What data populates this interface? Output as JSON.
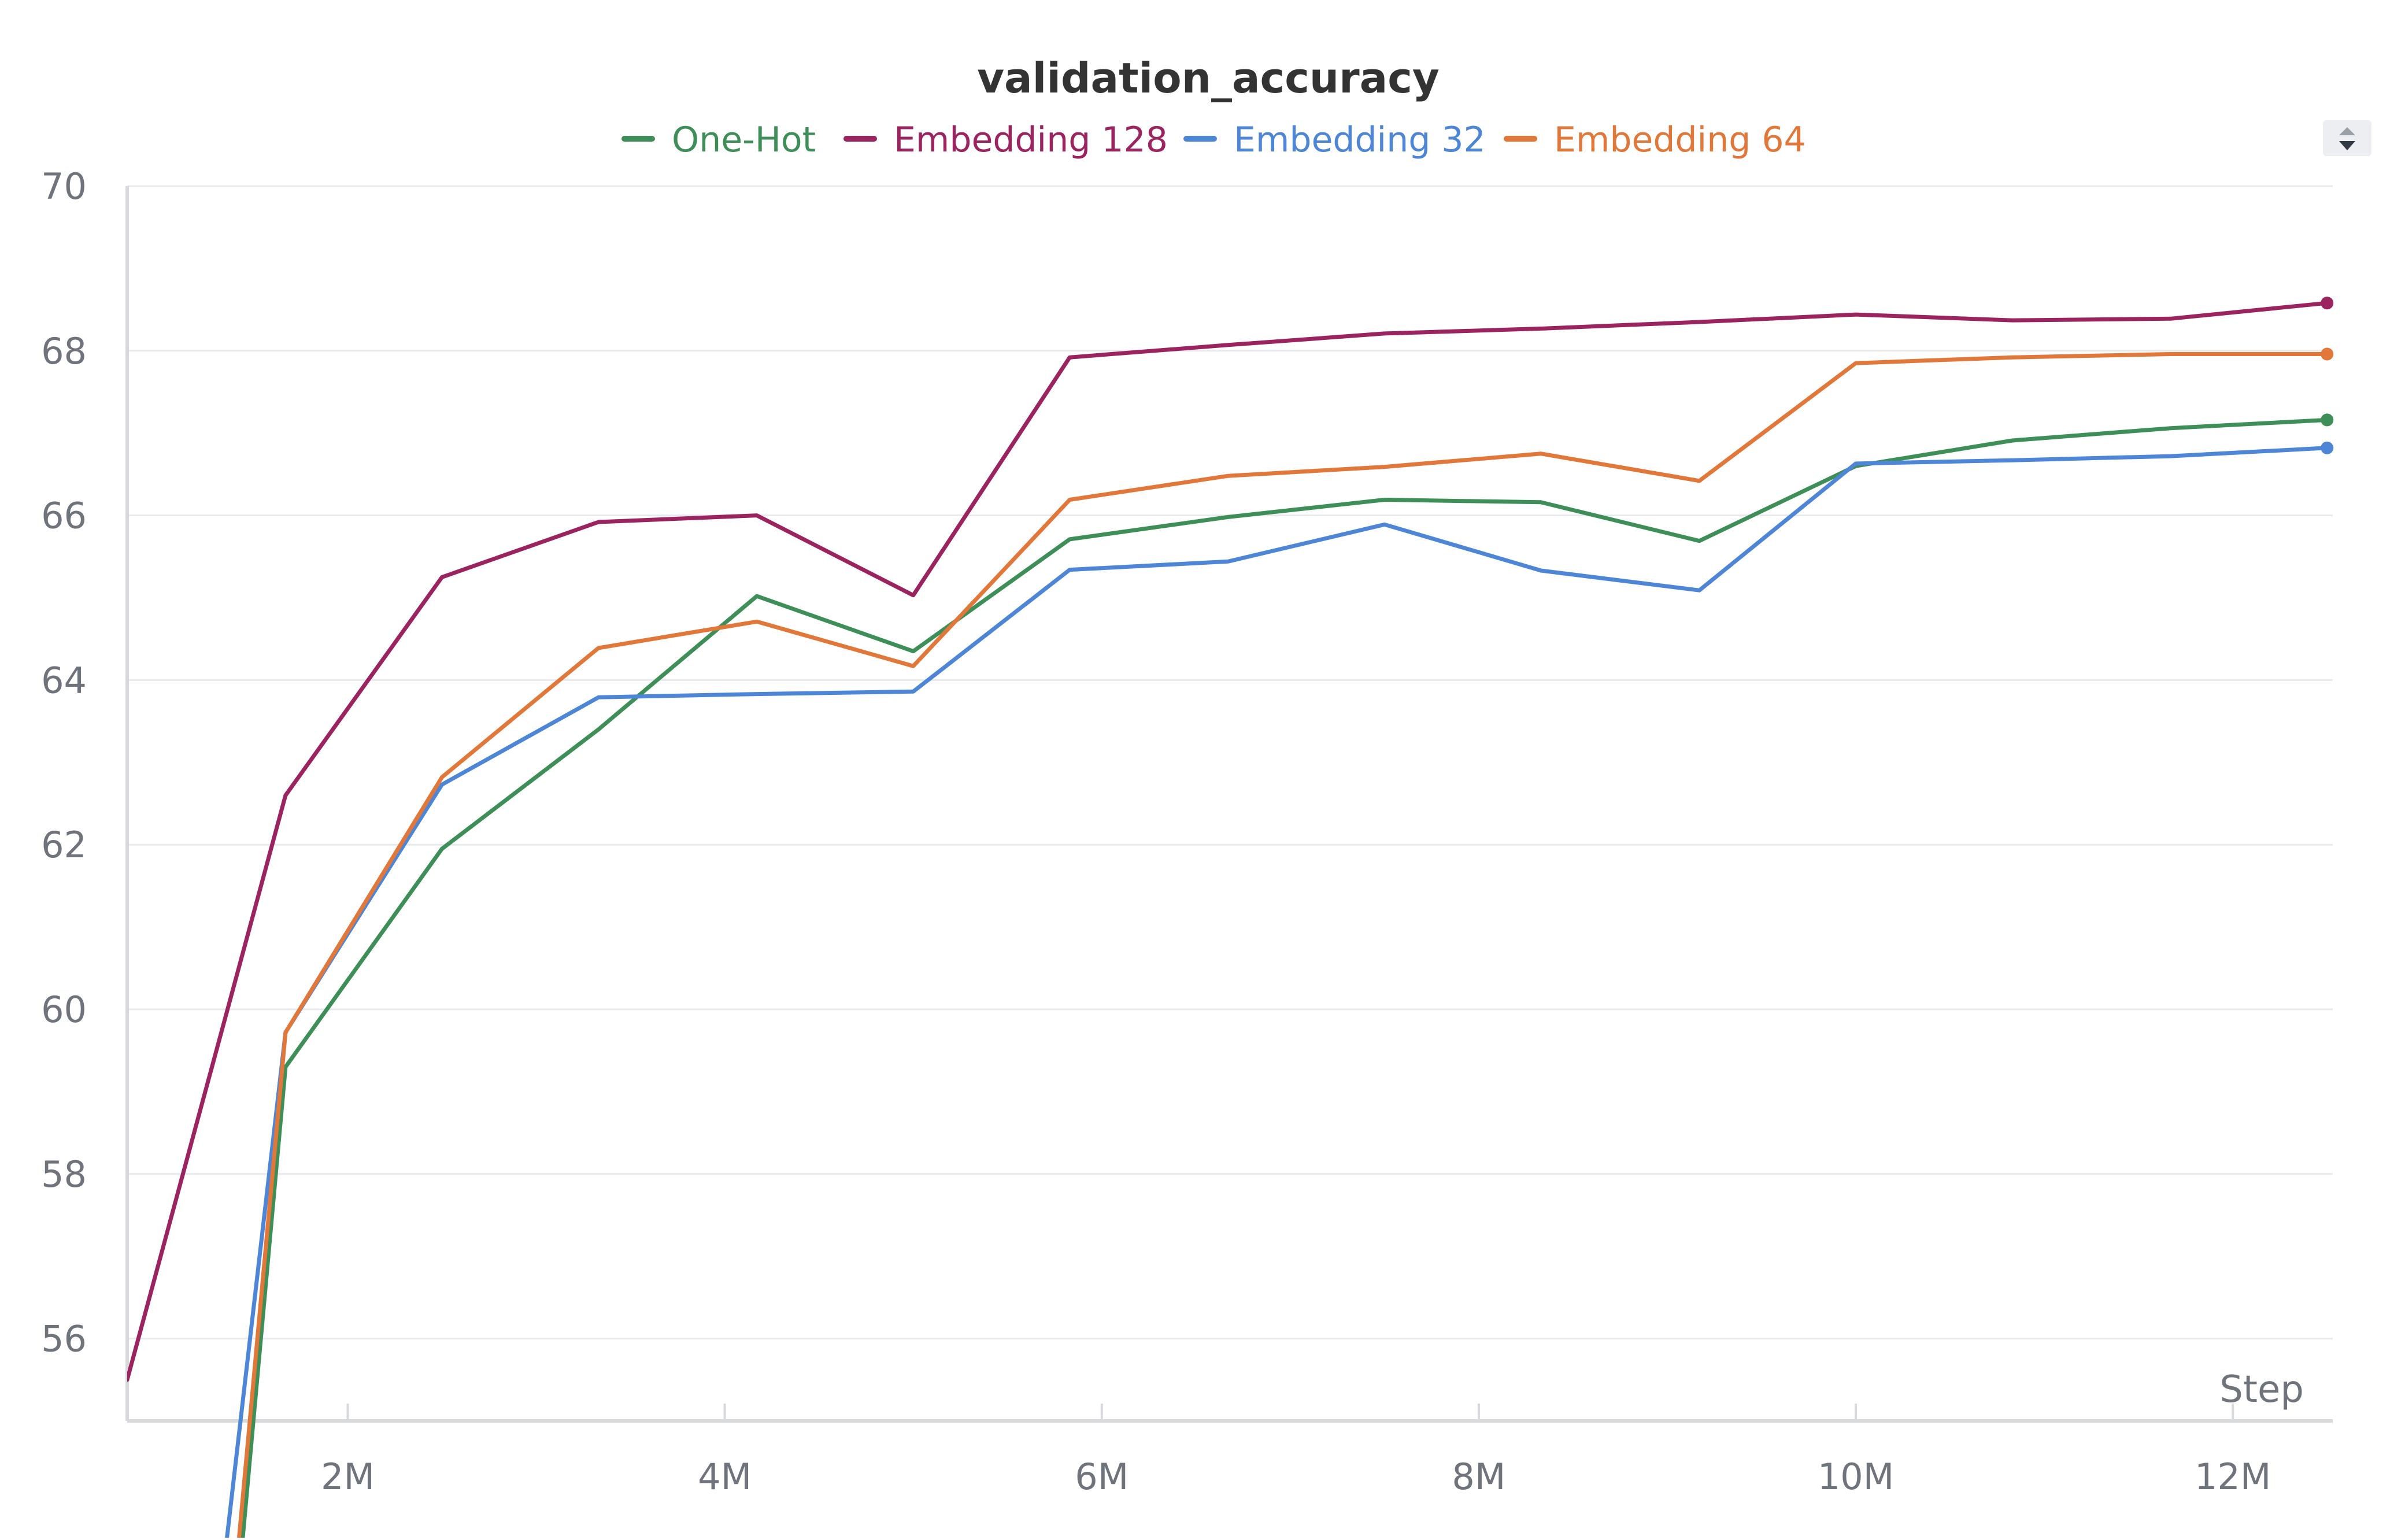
{
  "chart_data": {
    "type": "line",
    "title": "validation_accuracy",
    "xlabel": "Step",
    "ylabel": "",
    "xlim": [
      830000,
      12530000
    ],
    "ylim": [
      55,
      70
    ],
    "xticks": [
      2000000,
      4000000,
      6000000,
      8000000,
      10000000,
      12000000
    ],
    "xtick_labels": [
      "2M",
      "4M",
      "6M",
      "8M",
      "10M",
      "12M"
    ],
    "yticks": [
      56,
      58,
      60,
      62,
      64,
      66,
      68,
      70
    ],
    "ytick_labels": [
      "56",
      "58",
      "60",
      "62",
      "64",
      "66",
      "68",
      "70"
    ],
    "grid": true,
    "legend_position": "top",
    "series": [
      {
        "name": "One-Hot",
        "color": "#3d8f57",
        "x": [
          1420000,
          1670000,
          2500000,
          3330000,
          4170000,
          5000000,
          5830000,
          6670000,
          7500000,
          8330000,
          9170000,
          10000000,
          10830000,
          11670000,
          12500000
        ],
        "y": [
          53,
          59.3,
          61.95,
          63.4,
          65.02,
          64.35,
          65.71,
          65.98,
          66.19,
          66.16,
          65.69,
          66.6,
          66.91,
          67.06,
          67.16
        ]
      },
      {
        "name": "Embedding 128",
        "color": "#9b2360",
        "x": [
          830000,
          1670000,
          2500000,
          3330000,
          4170000,
          5000000,
          5830000,
          6670000,
          7500000,
          8330000,
          9170000,
          10000000,
          10830000,
          11670000,
          12500000
        ],
        "y": [
          55.5,
          62.6,
          65.25,
          65.92,
          66.0,
          65.03,
          67.92,
          68.07,
          68.21,
          68.27,
          68.35,
          68.44,
          68.37,
          68.39,
          68.58
        ]
      },
      {
        "name": "Embedding 32",
        "color": "#4d86d6",
        "x": [
          1330000,
          1670000,
          2500000,
          3330000,
          4170000,
          5000000,
          5830000,
          6670000,
          7500000,
          8330000,
          9170000,
          10000000,
          10830000,
          11670000,
          12500000
        ],
        "y": [
          53,
          59.72,
          62.73,
          63.79,
          63.83,
          63.86,
          65.34,
          65.44,
          65.89,
          65.33,
          65.09,
          66.63,
          66.67,
          66.72,
          66.82
        ]
      },
      {
        "name": "Embedding 64",
        "color": "#e2773a",
        "x": [
          1400000,
          1670000,
          2500000,
          3330000,
          4170000,
          5000000,
          5830000,
          6670000,
          7500000,
          8330000,
          9170000,
          10000000,
          10830000,
          11670000,
          12500000
        ],
        "y": [
          53,
          59.72,
          62.82,
          64.39,
          64.71,
          64.17,
          66.19,
          66.48,
          66.59,
          66.75,
          66.42,
          67.85,
          67.92,
          67.96,
          67.96
        ]
      }
    ]
  }
}
